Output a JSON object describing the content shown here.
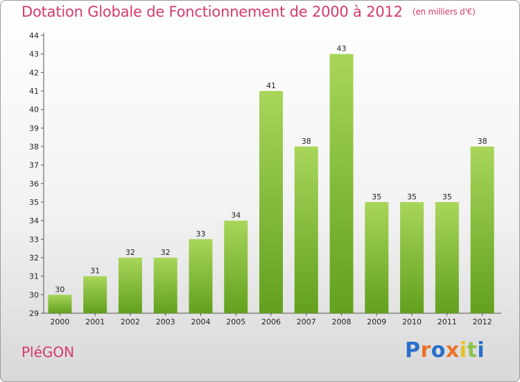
{
  "title": "Dotation Globale de Fonctionnement de 2000 à 2012",
  "unit_label": "(en milliers d'€)",
  "commune": "PléGON",
  "brand": {
    "text": "Proxiti",
    "colors": [
      "#2a6fc9",
      "#e8742a",
      "#2a6fc9",
      "#e8742a",
      "#e8c21a",
      "#8bc34a",
      "#2a6fc9"
    ]
  },
  "colors": {
    "bar_light": "#a8d65a",
    "bar_dark": "#62a01e",
    "title": "#d63a6a"
  },
  "chart_data": {
    "type": "bar",
    "categories": [
      "2000",
      "2001",
      "2002",
      "2003",
      "2004",
      "2005",
      "2006",
      "2007",
      "2008",
      "2009",
      "2010",
      "2011",
      "2012"
    ],
    "values": [
      30,
      31,
      32,
      32,
      33,
      34,
      41,
      38,
      43,
      35,
      35,
      35,
      38
    ],
    "ylim": [
      29,
      44
    ],
    "yticks": [
      29,
      30,
      31,
      32,
      33,
      34,
      35,
      36,
      37,
      38,
      39,
      40,
      41,
      42,
      43,
      44
    ],
    "grid": false,
    "legend": "none"
  }
}
